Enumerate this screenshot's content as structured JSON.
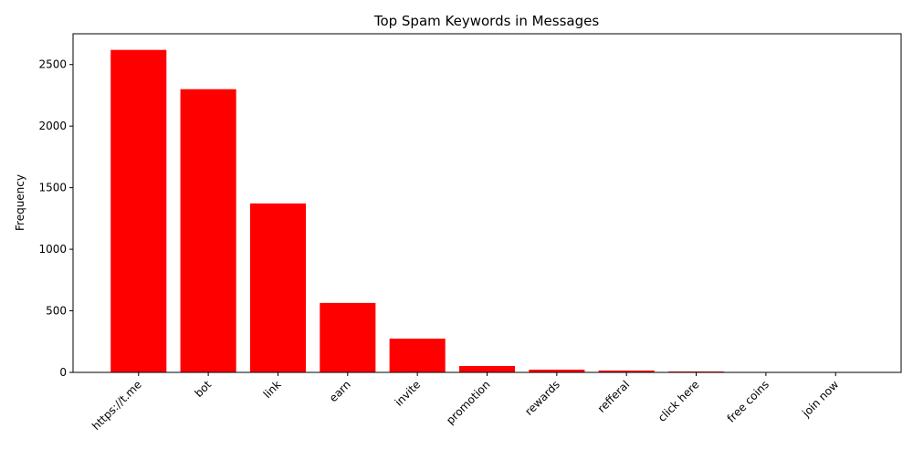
{
  "chart_data": {
    "type": "bar",
    "title": "Top Spam Keywords in Messages",
    "y_label": "Frequency",
    "categories": [
      "https://t.me",
      "bot",
      "link",
      "earn",
      "invite",
      "promotion",
      "rewards",
      "refferal",
      "click here",
      "free coins",
      "join now"
    ],
    "values": [
      2619,
      2300,
      1372,
      564,
      274,
      52,
      22,
      15,
      7,
      2,
      1
    ],
    "color": "#ff0000",
    "ylim": [
      0,
      2750
    ],
    "yticks": [
      0,
      500,
      1000,
      1500,
      2000,
      2500
    ]
  }
}
